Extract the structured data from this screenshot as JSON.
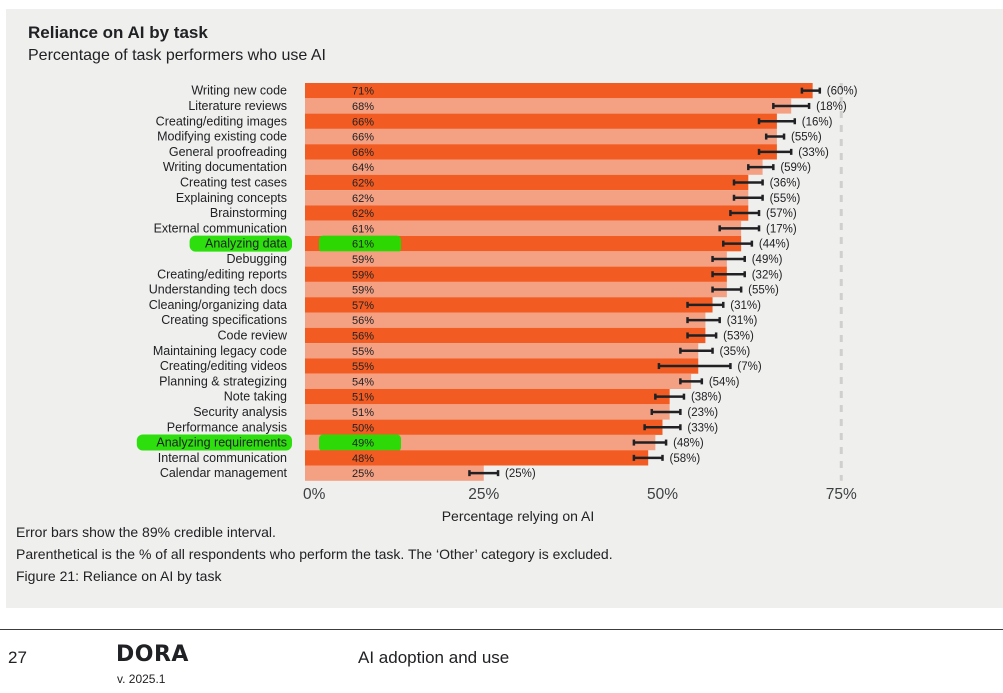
{
  "header": {
    "title": "Reliance on AI by task",
    "subtitle": "Percentage of task performers who use AI"
  },
  "notes": [
    "Error bars show the 89% credible interval.",
    "Parenthetical is the % of all respondents who perform the task. The ‘Other’ category is excluded.",
    "Figure 21: Reliance on AI by task"
  ],
  "footer": {
    "page_number": "27",
    "logo": "DORA",
    "version": "v. 2025.1",
    "section": "AI adoption and use"
  },
  "colors": {
    "panel_bg": "#efefed",
    "bar_dark": "#f25c22",
    "bar_light": "#f4a183",
    "highlight": "#22dd00"
  },
  "chart_data": {
    "type": "bar",
    "orientation": "horizontal",
    "title": "Reliance on AI by task",
    "subtitle": "Percentage of task performers who use AI",
    "xlabel": "Percentage relying on AI",
    "xlim": [
      0,
      75
    ],
    "xticks": [
      0,
      25,
      50,
      75
    ],
    "xtick_labels": [
      "0%",
      "25%",
      "50%",
      "75%"
    ],
    "grid": "dashed vertical at 75%",
    "categories": [
      "Writing new code",
      "Literature reviews",
      "Creating/editing images",
      "Modifying existing code",
      "General proofreading",
      "Writing documentation",
      "Creating test cases",
      "Explaining concepts",
      "Brainstorming",
      "External communication",
      "Analyzing data",
      "Debugging",
      "Creating/editing reports",
      "Understanding tech docs",
      "Cleaning/organizing data",
      "Creating specifications",
      "Code review",
      "Maintaining legacy code",
      "Creating/editing videos",
      "Planning & strategizing",
      "Note taking",
      "Security analysis",
      "Performance analysis",
      "Analyzing requirements",
      "Internal communication",
      "Calendar management"
    ],
    "values": [
      71,
      68,
      66,
      66,
      66,
      64,
      62,
      62,
      62,
      61,
      61,
      59,
      59,
      59,
      57,
      56,
      56,
      55,
      55,
      54,
      51,
      51,
      50,
      49,
      48,
      25
    ],
    "value_labels": [
      "71%",
      "68%",
      "66%",
      "66%",
      "66%",
      "64%",
      "62%",
      "62%",
      "62%",
      "61%",
      "61%",
      "59%",
      "59%",
      "59%",
      "57%",
      "56%",
      "56%",
      "55%",
      "55%",
      "54%",
      "51%",
      "51%",
      "50%",
      "49%",
      "48%",
      "25%"
    ],
    "ci_low": [
      69.5,
      65.5,
      63.5,
      64.5,
      63.5,
      62,
      60,
      60,
      59.5,
      58,
      58.5,
      57,
      57,
      57,
      53.5,
      53.5,
      53.5,
      52.5,
      49.5,
      52.5,
      49,
      48.5,
      47.5,
      46,
      46,
      23
    ],
    "ci_high": [
      72,
      70.5,
      68.5,
      67,
      68,
      65.5,
      64,
      64,
      63.5,
      63.5,
      62.5,
      61.5,
      61.5,
      61,
      58.5,
      58,
      57.5,
      57,
      59.5,
      55.5,
      53,
      52.5,
      52.5,
      50.5,
      50,
      27
    ],
    "respondent_share_labels": [
      "(60%)",
      "(18%)",
      "(16%)",
      "(55%)",
      "(33%)",
      "(59%)",
      "(36%)",
      "(55%)",
      "(57%)",
      "(17%)",
      "(44%)",
      "(49%)",
      "(32%)",
      "(55%)",
      "(31%)",
      "(31%)",
      "(53%)",
      "(35%)",
      "(7%)",
      "(54%)",
      "(38%)",
      "(23%)",
      "(33%)",
      "(48%)",
      "(58%)",
      "(25%)"
    ],
    "highlighted_categories": [
      "Analyzing data",
      "Analyzing requirements"
    ]
  }
}
